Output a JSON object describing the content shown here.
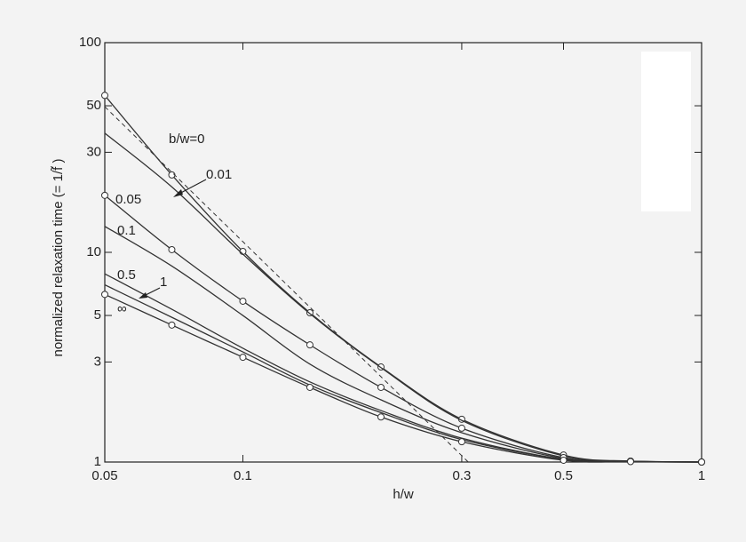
{
  "chart_data": {
    "type": "line",
    "xlabel": "h/w",
    "ylabel": "normalized relaxation time (= 1/f̃ )",
    "log_x": true,
    "log_y": true,
    "xlim": [
      0.05,
      1
    ],
    "ylim": [
      1,
      100
    ],
    "xticks": [
      0.05,
      0.1,
      0.3,
      0.5,
      1
    ],
    "yticks": [
      1,
      3,
      5,
      10,
      30,
      50,
      100
    ],
    "series": [
      {
        "name": "b/w=0",
        "color": "#333333",
        "markers": true,
        "x": [
          0.05,
          0.07,
          0.1,
          0.14,
          0.2,
          0.3,
          0.5,
          0.7,
          1
        ],
        "values": [
          56,
          23.4,
          10.1,
          5.15,
          2.84,
          1.6,
          1.08,
          1.01,
          1
        ]
      },
      {
        "name": "0.01",
        "color": "#333333",
        "markers": false,
        "x": [
          0.05,
          0.07,
          0.1,
          0.14,
          0.2,
          0.3,
          0.5,
          0.7,
          1
        ],
        "values": [
          37,
          20.5,
          9.8,
          5.1,
          2.82,
          1.58,
          1.07,
          1.01,
          1
        ]
      },
      {
        "name": "0.05",
        "color": "#333333",
        "markers": true,
        "x": [
          0.05,
          0.07,
          0.1,
          0.14,
          0.2,
          0.3,
          0.5,
          0.7,
          1
        ],
        "values": [
          18.7,
          10.3,
          5.85,
          3.62,
          2.27,
          1.45,
          1.05,
          1.01,
          1
        ]
      },
      {
        "name": "0.1",
        "color": "#333333",
        "markers": false,
        "x": [
          0.05,
          0.07,
          0.1,
          0.14,
          0.2,
          0.3,
          0.5,
          0.7,
          1
        ],
        "values": [
          13.3,
          8.6,
          5.0,
          2.93,
          1.98,
          1.38,
          1.04,
          1.01,
          1
        ]
      },
      {
        "name": "0.5",
        "color": "#333333",
        "markers": false,
        "x": [
          0.05,
          0.07,
          0.1,
          0.14,
          0.2,
          0.3,
          0.5,
          0.7,
          1
        ],
        "values": [
          7.9,
          5.35,
          3.49,
          2.41,
          1.76,
          1.3,
          1.03,
          1.005,
          1
        ]
      },
      {
        "name": "1",
        "color": "#333333",
        "markers": false,
        "x": [
          0.05,
          0.07,
          0.1,
          0.14,
          0.2,
          0.3,
          0.5,
          0.7,
          1
        ],
        "values": [
          7.0,
          4.9,
          3.35,
          2.33,
          1.72,
          1.28,
          1.03,
          1.005,
          1
        ]
      },
      {
        "name": "∞",
        "color": "#333333",
        "markers": true,
        "x": [
          0.05,
          0.07,
          0.1,
          0.14,
          0.2,
          0.3,
          0.5,
          0.7,
          1
        ],
        "values": [
          6.3,
          4.5,
          3.16,
          2.27,
          1.64,
          1.25,
          1.02,
          1.005,
          1
        ]
      },
      {
        "color": "#333333",
        "dashed": true,
        "markers": false,
        "x": [
          0.05,
          0.31
        ],
        "values": [
          49.5,
          1
        ]
      }
    ]
  }
}
